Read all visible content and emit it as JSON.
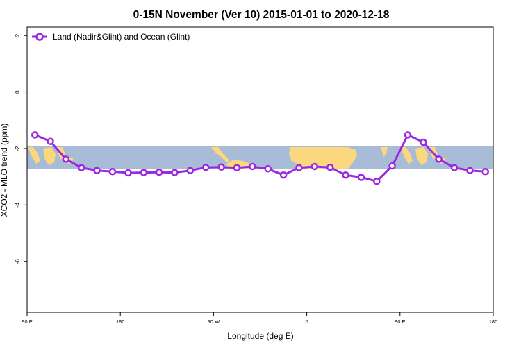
{
  "chart_data": {
    "type": "line",
    "title": "0-15N November (Ver 10)   2015-01-01 to 2020-12-18",
    "xlabel": "Longitude (deg E)",
    "ylabel": "XCO2 - MLO trend (ppm)",
    "xlim": [
      90,
      480
    ],
    "ylim": [
      -7.8,
      2.3
    ],
    "x_ticks": [
      {
        "value": 90,
        "label": "90 E"
      },
      {
        "value": 180,
        "label": "180"
      },
      {
        "value": 270,
        "label": "90 W"
      },
      {
        "value": 360,
        "label": "0"
      },
      {
        "value": 450,
        "label": "90 E"
      },
      {
        "value": 540,
        "label": "180"
      }
    ],
    "y_ticks": [
      {
        "value": 2,
        "label": "2"
      },
      {
        "value": 0,
        "label": "0"
      },
      {
        "value": -2,
        "label": "-2"
      },
      {
        "value": -4,
        "label": "-4"
      },
      {
        "value": -6,
        "label": "-6"
      }
    ],
    "background_map": {
      "lat_range": "0-15N",
      "ocean_color": "#a8bcd8",
      "land_color": "#fbd87d"
    },
    "legend_position": "top-left",
    "grid": false,
    "series": [
      {
        "name": "Land (Nadir&Glint) and Ocean (Glint)",
        "color": "#9b27e0",
        "x": [
          97.5,
          112.5,
          127.5,
          142.5,
          157.5,
          172.5,
          187.5,
          202.5,
          217.5,
          232.5,
          247.5,
          262.5,
          277.5,
          292.5,
          307.5,
          322.5,
          337.5,
          352.5,
          367.5,
          382.5,
          397.5,
          412.5,
          427.5,
          442.5,
          457.5,
          472.5,
          487.5,
          502.5,
          517.5,
          532.5
        ],
        "values": [
          -1.52,
          -1.75,
          -2.38,
          -2.68,
          -2.78,
          -2.82,
          -2.86,
          -2.85,
          -2.84,
          -2.85,
          -2.78,
          -2.67,
          -2.66,
          -2.68,
          -2.64,
          -2.72,
          -2.94,
          -2.68,
          -2.64,
          -2.67,
          -2.94,
          -3.02,
          -3.16,
          -2.62,
          -1.52,
          -1.78,
          -2.38,
          -2.68,
          -2.78,
          -2.82
        ]
      }
    ]
  }
}
